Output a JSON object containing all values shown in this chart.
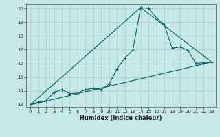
{
  "xlabel": "Humidex (Indice chaleur)",
  "background_color": "#c8e8e8",
  "grid_color": "#b0d4d4",
  "line_color": "#006060",
  "xlim": [
    -0.5,
    23.5
  ],
  "ylim": [
    12.85,
    20.3
  ],
  "xticks": [
    0,
    1,
    2,
    3,
    4,
    5,
    6,
    7,
    8,
    9,
    10,
    11,
    12,
    13,
    14,
    15,
    16,
    17,
    18,
    19,
    20,
    21,
    22,
    23
  ],
  "yticks": [
    13,
    14,
    15,
    16,
    17,
    18,
    19,
    20
  ],
  "series1_x": [
    0,
    1,
    2,
    3,
    4,
    5,
    6,
    7,
    8,
    9,
    10,
    11,
    12,
    13,
    14,
    15,
    16,
    17,
    18,
    19,
    20,
    21,
    22,
    23
  ],
  "series1_y": [
    13.0,
    13.2,
    13.3,
    13.9,
    14.1,
    13.8,
    13.85,
    14.1,
    14.2,
    14.1,
    14.5,
    15.6,
    16.4,
    16.95,
    20.05,
    20.0,
    19.3,
    18.8,
    17.1,
    17.2,
    16.95,
    16.0,
    16.05,
    16.1
  ],
  "series2_x": [
    0,
    14,
    23
  ],
  "series2_y": [
    13.0,
    20.05,
    16.1
  ],
  "series3_x": [
    0,
    23
  ],
  "series3_y": [
    13.0,
    16.1
  ],
  "tick_fontsize": 5.0,
  "xlabel_fontsize": 6.0
}
